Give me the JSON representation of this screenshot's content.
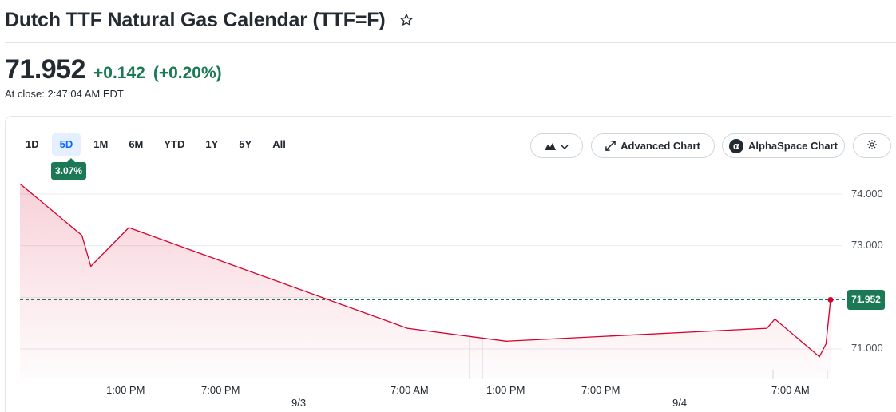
{
  "header": {
    "title": "Dutch TTF Natural Gas Calendar (TTF=F)",
    "star_icon": "star-outline-icon"
  },
  "quote": {
    "price": "71.952",
    "change": "+0.142",
    "change_pct": "(+0.20%)",
    "close_time": "At close: 2:47:04 AM EDT",
    "change_color": "#1b7a55"
  },
  "toolbar": {
    "ranges": [
      "1D",
      "5D",
      "1M",
      "6M",
      "YTD",
      "1Y",
      "5Y",
      "All"
    ],
    "active_range": "5D",
    "range_change": "3.07%",
    "chart_type_icon": "mountain-chart-icon",
    "advanced_chart_label": "Advanced Chart",
    "alphaspace_label": "AlphaSpace Chart",
    "settings_icon": "gear-icon"
  },
  "chart_data": {
    "type": "area",
    "series": [
      {
        "values": [
          {
            "x": "9/2 10:00 AM",
            "y": 74.2
          },
          {
            "x": "9/2 11:45 AM",
            "y": 73.2
          },
          {
            "x": "9/2 12:00 PM",
            "y": 72.6
          },
          {
            "x": "9/2 1:10 PM",
            "y": 73.35
          },
          {
            "x": "9/3 6:45 AM",
            "y": 71.4
          },
          {
            "x": "9/3 1:00 PM",
            "y": 71.15
          },
          {
            "x": "9/4 5:30 AM",
            "y": 71.4
          },
          {
            "x": "9/4 6:00 AM",
            "y": 71.58
          },
          {
            "x": "9/4 9:10 AM",
            "y": 70.85
          },
          {
            "x": "9/4 9:40 AM",
            "y": 71.1
          },
          {
            "x": "9/4 10:00 AM",
            "y": 71.952
          }
        ]
      }
    ],
    "y_ticks": [
      "74.000",
      "73.000",
      "71.000"
    ],
    "x_ticks": [
      "1:00 PM",
      "7:00 PM",
      "7:00 AM",
      "1:00 PM",
      "7:00 PM",
      "7:00 AM"
    ],
    "date_labels": [
      "9/3",
      "9/4"
    ],
    "current_value": "71.952",
    "ylim": [
      70.8,
      74.2
    ],
    "grid": true,
    "line_color": "#d6002c",
    "reference_line_color": "#1b7a55"
  }
}
